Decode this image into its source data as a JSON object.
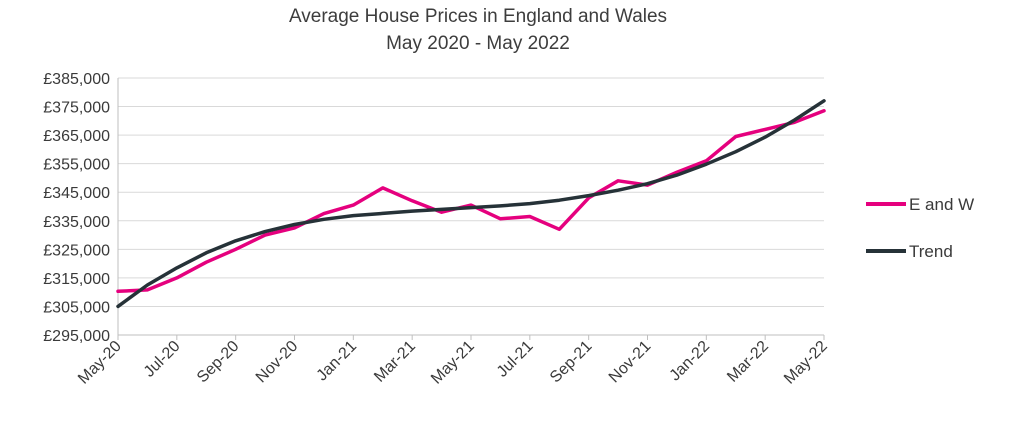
{
  "chart_data": {
    "type": "line",
    "title": "Average House Prices in England and Wales",
    "subtitle": "May 2020 - May 2022",
    "categories": [
      "May-20",
      "Jun-20",
      "Jul-20",
      "Aug-20",
      "Sep-20",
      "Oct-20",
      "Nov-20",
      "Dec-20",
      "Jan-21",
      "Feb-21",
      "Mar-21",
      "Apr-21",
      "May-21",
      "Jun-21",
      "Jul-21",
      "Aug-21",
      "Sep-21",
      "Oct-21",
      "Nov-21",
      "Dec-21",
      "Jan-22",
      "Feb-22",
      "Mar-22",
      "Apr-22",
      "May-22"
    ],
    "x_tick_labels": [
      "May-20",
      "Jul-20",
      "Sep-20",
      "Nov-20",
      "Jan-21",
      "Mar-21",
      "May-21",
      "Jul-21",
      "Sep-21",
      "Nov-21",
      "Jan-22",
      "Mar-22",
      "May-22"
    ],
    "y_tick_labels": [
      "£295,000",
      "£305,000",
      "£315,000",
      "£325,000",
      "£335,000",
      "£345,000",
      "£355,000",
      "£365,000",
      "£375,000",
      "£385,000"
    ],
    "ylim": [
      295000,
      385000
    ],
    "grid": true,
    "legend_position": "right",
    "series": [
      {
        "name": "E and W",
        "color": "#e5007e",
        "values": [
          310300,
          310800,
          315000,
          320500,
          325000,
          330000,
          332500,
          337500,
          340500,
          346500,
          342000,
          338000,
          340500,
          335700,
          336500,
          332000,
          343000,
          349000,
          347500,
          352000,
          356000,
          364500,
          367000,
          369500,
          373500
        ]
      },
      {
        "name": "Trend",
        "color": "#263238",
        "values": [
          305000,
          312500,
          318500,
          323800,
          328000,
          331200,
          333700,
          335500,
          336800,
          337600,
          338400,
          339000,
          339600,
          340200,
          341000,
          342200,
          343800,
          345700,
          348000,
          351000,
          354800,
          359200,
          364300,
          370300,
          377000
        ]
      }
    ]
  }
}
